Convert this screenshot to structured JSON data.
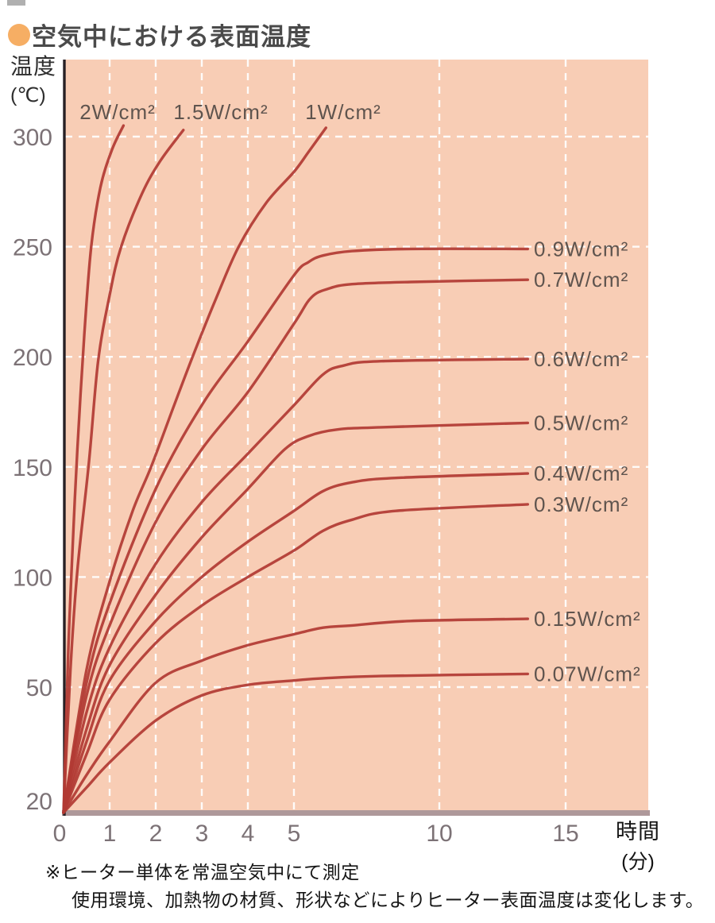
{
  "header": {
    "title": "空気中における表面温度",
    "bullet_color": "#f6ae64"
  },
  "axes": {
    "y_title_1": "温度",
    "y_title_2": "(℃)",
    "x_title_1": "時間",
    "x_title_2": "(分)"
  },
  "notes": {
    "line1": "※ヒーター単体を常温空気中にて測定",
    "line2": "使用環境、加熱物の材質、形状などによりヒーター表面温度は変化します。"
  },
  "chart_data": {
    "type": "line",
    "title": "空気中における表面温度",
    "xlabel": "時間(分)",
    "ylabel": "温度(℃)",
    "x_ticks": [
      0,
      1,
      2,
      3,
      4,
      5,
      10,
      15
    ],
    "y_ticks": [
      300,
      250,
      200,
      150,
      100,
      50,
      20
    ],
    "xlim": [
      0,
      15.8
    ],
    "ylim": [
      20,
      310
    ],
    "x_scale_note": "0-5 min expanded, 5-10 and 10-15 min compressed",
    "grid": "white dashed gridlines on salmon background",
    "plot_bg": "#f8cdb5",
    "grid_color": "#ffffff",
    "line_color": "#b13a34",
    "axis_line_color": "#272025",
    "baseline_bar_color": "#ae989a",
    "tick_label_color": "#7c7276",
    "series_label_color": "#5f544e",
    "series": [
      {
        "name": "2W/cm²",
        "label_side": "top",
        "label_x_hint": 148,
        "points": [
          [
            0,
            20
          ],
          [
            0.1,
            65
          ],
          [
            0.2,
            115
          ],
          [
            0.3,
            158
          ],
          [
            0.45,
            210
          ],
          [
            0.6,
            250
          ],
          [
            0.8,
            277
          ],
          [
            1.05,
            294
          ],
          [
            1.3,
            305
          ]
        ]
      },
      {
        "name": "1.5W/cm²",
        "label_side": "top",
        "label_x_hint": 278,
        "points": [
          [
            0,
            20
          ],
          [
            0.15,
            58
          ],
          [
            0.3,
            103
          ],
          [
            0.55,
            152
          ],
          [
            0.75,
            198
          ],
          [
            1,
            228
          ],
          [
            1.25,
            250
          ],
          [
            1.7,
            274
          ],
          [
            2.1,
            289
          ],
          [
            2.6,
            303
          ]
        ]
      },
      {
        "name": "1W/cm²",
        "label_side": "top",
        "label_x_hint": 432,
        "points": [
          [
            0,
            20
          ],
          [
            0.5,
            58
          ],
          [
            1,
            98
          ],
          [
            1.5,
            130
          ],
          [
            1.9,
            150
          ],
          [
            2.4,
            178
          ],
          [
            2.8,
            200
          ],
          [
            3.3,
            226
          ],
          [
            3.8,
            250
          ],
          [
            4.4,
            270
          ],
          [
            5,
            284
          ],
          [
            5.5,
            293
          ],
          [
            6.1,
            304
          ]
        ]
      },
      {
        "name": "0.9W/cm²",
        "label_side": "right",
        "points": [
          [
            0,
            20
          ],
          [
            0.5,
            52
          ],
          [
            1,
            88
          ],
          [
            2,
            140
          ],
          [
            3,
            178
          ],
          [
            4,
            207
          ],
          [
            5,
            237
          ],
          [
            5.5,
            243
          ],
          [
            6,
            246
          ],
          [
            7,
            248
          ],
          [
            9,
            249
          ],
          [
            13.5,
            249
          ]
        ]
      },
      {
        "name": "0.7W/cm²",
        "label_side": "right",
        "points": [
          [
            0,
            20
          ],
          [
            0.5,
            48
          ],
          [
            1,
            78
          ],
          [
            2,
            125
          ],
          [
            3,
            158
          ],
          [
            4,
            184
          ],
          [
            5,
            215
          ],
          [
            5.6,
            227
          ],
          [
            6.2,
            231
          ],
          [
            7,
            233
          ],
          [
            9,
            234
          ],
          [
            13.5,
            235
          ]
        ]
      },
      {
        "name": "0.6W/cm²",
        "label_side": "right",
        "points": [
          [
            0,
            20
          ],
          [
            0.5,
            44
          ],
          [
            1,
            68
          ],
          [
            2,
            106
          ],
          [
            3,
            134
          ],
          [
            4,
            156
          ],
          [
            5,
            178
          ],
          [
            6,
            192
          ],
          [
            6.7,
            196
          ],
          [
            8,
            198
          ],
          [
            13.5,
            199
          ]
        ]
      },
      {
        "name": "0.5W/cm²",
        "label_side": "right",
        "points": [
          [
            0,
            20
          ],
          [
            0.5,
            40
          ],
          [
            1,
            60
          ],
          [
            2,
            92
          ],
          [
            3,
            118
          ],
          [
            4,
            140
          ],
          [
            4.8,
            158
          ],
          [
            5.5,
            164
          ],
          [
            6.5,
            167
          ],
          [
            8,
            168
          ],
          [
            13.5,
            170
          ]
        ]
      },
      {
        "name": "0.4W/cm²",
        "label_side": "right",
        "points": [
          [
            0,
            20
          ],
          [
            0.5,
            37
          ],
          [
            1,
            53
          ],
          [
            2,
            80
          ],
          [
            3,
            100
          ],
          [
            4,
            116
          ],
          [
            5,
            130
          ],
          [
            6,
            139
          ],
          [
            7,
            143
          ],
          [
            8.5,
            145
          ],
          [
            13.5,
            147
          ]
        ]
      },
      {
        "name": "0.3W/cm²",
        "label_side": "right",
        "points": [
          [
            0,
            20
          ],
          [
            0.5,
            34
          ],
          [
            1,
            47
          ],
          [
            2,
            70
          ],
          [
            3,
            87
          ],
          [
            4,
            100
          ],
          [
            5,
            112
          ],
          [
            6,
            121
          ],
          [
            7,
            126
          ],
          [
            8.5,
            130
          ],
          [
            13.5,
            133
          ]
        ]
      },
      {
        "name": "0.15W/cm²",
        "label_side": "right",
        "points": [
          [
            0,
            20
          ],
          [
            0.5,
            29
          ],
          [
            1,
            37
          ],
          [
            2,
            52
          ],
          [
            3,
            62
          ],
          [
            4,
            69
          ],
          [
            5,
            74
          ],
          [
            6,
            77
          ],
          [
            7,
            78
          ],
          [
            9,
            80
          ],
          [
            13.5,
            81
          ]
        ]
      },
      {
        "name": "0.07W/cm²",
        "label_side": "right",
        "points": [
          [
            0,
            20
          ],
          [
            0.5,
            26
          ],
          [
            1,
            32
          ],
          [
            2,
            42
          ],
          [
            3,
            48
          ],
          [
            4,
            51
          ],
          [
            5,
            53
          ],
          [
            6,
            54
          ],
          [
            8,
            55
          ],
          [
            13.5,
            56
          ]
        ]
      }
    ]
  }
}
